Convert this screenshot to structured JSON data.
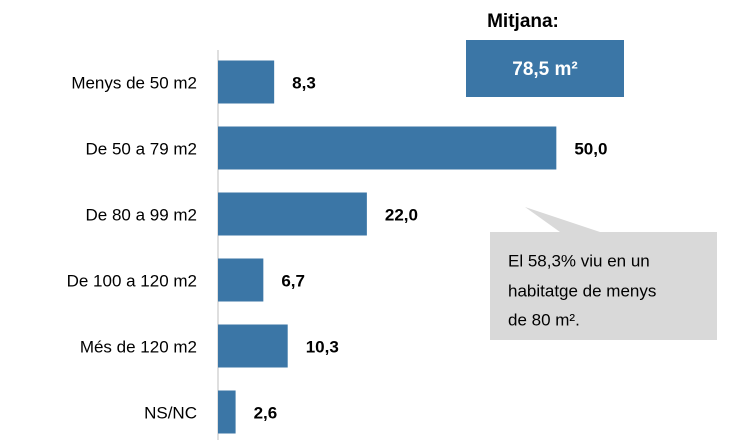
{
  "chart_data": {
    "type": "bar",
    "orientation": "horizontal",
    "categories": [
      "Menys de 50 m2",
      "De 50 a 79 m2",
      "De 80 a 99 m2",
      "De 100 a 120 m2",
      "Més de 120 m2",
      "NS/NC"
    ],
    "values": [
      8.3,
      50.0,
      22.0,
      6.7,
      10.3,
      2.6
    ],
    "value_labels": [
      "8,3",
      "50,0",
      "22,0",
      "6,7",
      "10,3",
      "2,6"
    ],
    "color": "#3b76a6",
    "xlim": [
      0,
      60
    ],
    "mean_title": "Mitjana:",
    "mean_label": "78,5 m²",
    "callout": [
      "El 58,3% viu en un",
      "habitatge de menys",
      "de 80 m²."
    ]
  }
}
